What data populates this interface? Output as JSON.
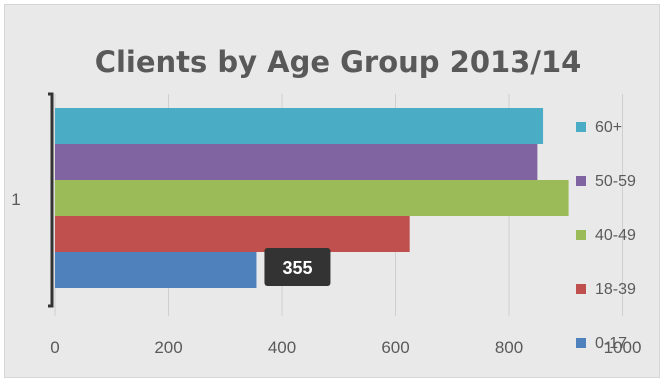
{
  "chart_data": {
    "type": "bar",
    "orientation": "horizontal",
    "title": "Clients by Age Group 2013/14",
    "categories": [
      "1"
    ],
    "xlim": [
      0,
      1000
    ],
    "xticks": [
      "0",
      "200",
      "400",
      "600",
      "800",
      "1000"
    ],
    "grid": true,
    "legend_position": "right",
    "series": [
      {
        "name": "60+",
        "values": [
          860
        ],
        "color": "#4bacc6"
      },
      {
        "name": "50-59",
        "values": [
          850
        ],
        "color": "#8064a2"
      },
      {
        "name": "40-49",
        "values": [
          905
        ],
        "color": "#9bbb59"
      },
      {
        "name": "18-39",
        "values": [
          625
        ],
        "color": "#c0504d"
      },
      {
        "name": "0-17",
        "values": [
          355
        ],
        "color": "#4f81bd"
      }
    ],
    "data_labels": [
      {
        "series": "0-17",
        "text": "355"
      }
    ]
  }
}
